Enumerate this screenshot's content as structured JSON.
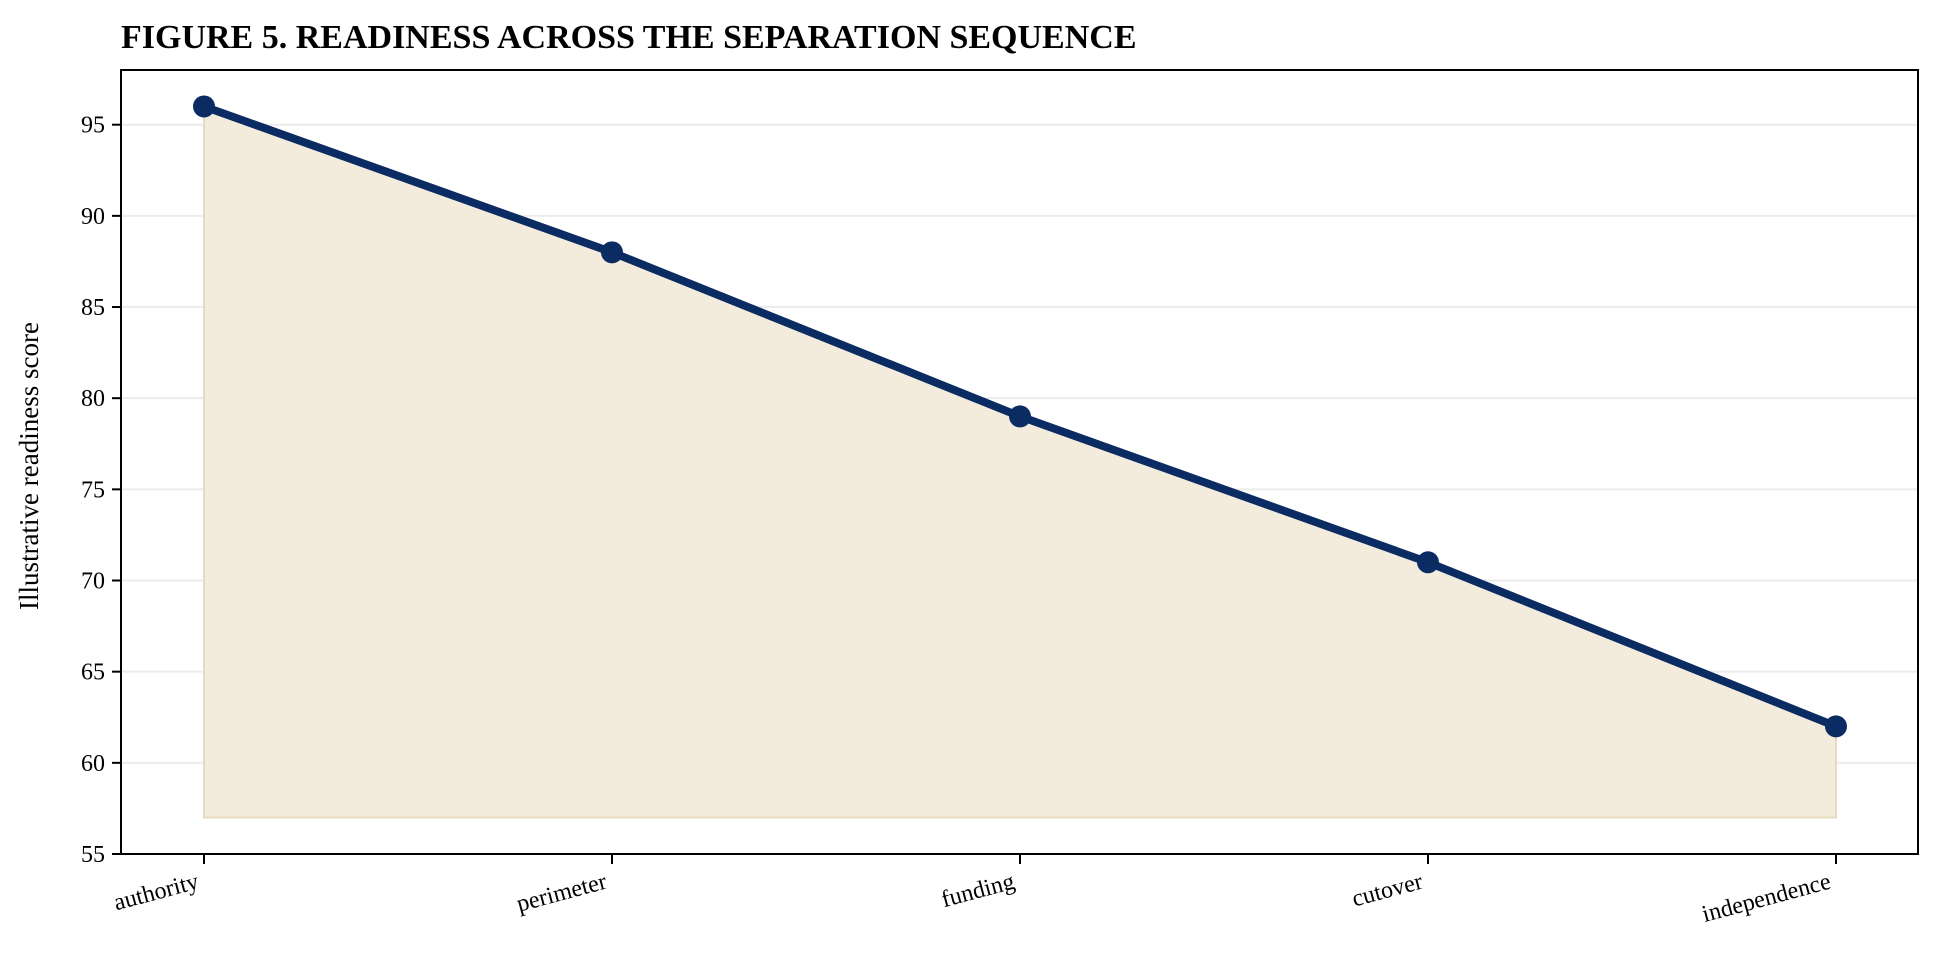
{
  "chart_data": {
    "type": "area",
    "title": "FIGURE 5. READINESS ACROSS THE SEPARATION SEQUENCE",
    "xlabel": "",
    "ylabel": "Illustrative readiness score",
    "categories": [
      "authority",
      "perimeter",
      "funding",
      "cutover",
      "independence"
    ],
    "series": [
      {
        "values": [
          96,
          88,
          79,
          71,
          62
        ]
      }
    ],
    "fill_baseline": 57,
    "ylim": [
      55,
      98
    ],
    "yticks": [
      55,
      60,
      65,
      70,
      75,
      80,
      85,
      90,
      95
    ],
    "grid": "horizontal",
    "legend": "none",
    "colors": {
      "line": "#0b2b63",
      "fill": "#f3ecdc",
      "fill_edge": "#e8dcbf",
      "grid": "#ececec",
      "axes": "#000000"
    }
  }
}
